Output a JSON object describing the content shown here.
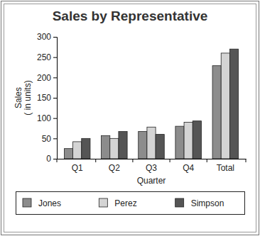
{
  "chart_data": {
    "type": "bar",
    "title": "Sales by Representative",
    "xlabel": "Quarter",
    "ylabel": [
      "Sales",
      "( in units)"
    ],
    "categories": [
      "Q1",
      "Q2",
      "Q3",
      "Q4",
      "Total"
    ],
    "series": [
      {
        "name": "Jones",
        "color": "#8c8c8c",
        "values": [
          25,
          57,
          67,
          80,
          229
        ]
      },
      {
        "name": "Perez",
        "color": "#d4d4d4",
        "values": [
          42,
          50,
          78,
          90,
          260
        ]
      },
      {
        "name": "Simpson",
        "color": "#555555",
        "values": [
          50,
          67,
          60,
          93,
          270
        ]
      }
    ],
    "ylim": [
      0,
      300
    ],
    "yticks": [
      0,
      50,
      100,
      150,
      200,
      250,
      300
    ],
    "grid": false,
    "legend": "bottom"
  }
}
